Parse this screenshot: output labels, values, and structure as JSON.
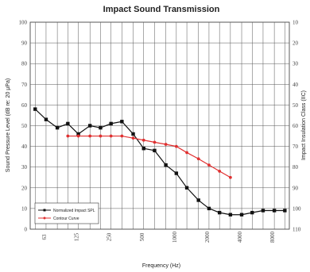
{
  "chart_data": {
    "type": "line",
    "title": "Impact Sound Transmission",
    "xlabel": "Frequency (Hz)",
    "ylabel": "Sound Pressure Level (dB re: 20 µPa)",
    "y2label": "Impact Insulation Class (IIC)",
    "xscale": "log",
    "ylim": [
      0,
      100
    ],
    "yticks": [
      0,
      10,
      20,
      30,
      40,
      50,
      60,
      70,
      80,
      90,
      100
    ],
    "y2ticks": [
      110,
      100,
      90,
      80,
      70,
      60,
      50,
      40,
      30,
      20,
      10
    ],
    "xtick_labels": [
      "63",
      "125",
      "250",
      "500",
      "1000",
      "2000",
      "4000",
      "8000"
    ],
    "xtick_values": [
      63,
      125,
      250,
      500,
      1000,
      2000,
      4000,
      8000
    ],
    "x": [
      50,
      63,
      80,
      100,
      125,
      160,
      200,
      250,
      315,
      400,
      500,
      630,
      800,
      1000,
      1250,
      1600,
      2000,
      2500,
      3150,
      4000,
      5000,
      6300,
      8000,
      10000
    ],
    "grid": true,
    "legend_position": "bottom-left",
    "series": [
      {
        "name": "Normalized Impact SPL",
        "color": "#111111",
        "marker": "square",
        "x": [
          50,
          63,
          80,
          100,
          125,
          160,
          200,
          250,
          315,
          400,
          500,
          630,
          800,
          1000,
          1250,
          1600,
          2000,
          2500,
          3150,
          4000,
          5000,
          6300,
          8000,
          10000
        ],
        "values": [
          58,
          53,
          49,
          51,
          46,
          50,
          49,
          51,
          52,
          46,
          39,
          38,
          31,
          27,
          20,
          14,
          10,
          8,
          7,
          7,
          8,
          9,
          9,
          9
        ]
      },
      {
        "name": "Contour Curve",
        "color": "#e03030",
        "marker": "dot",
        "x": [
          100,
          125,
          160,
          200,
          250,
          315,
          400,
          500,
          630,
          800,
          1000,
          1250,
          1600,
          2000,
          2500,
          3150
        ],
        "values": [
          45,
          45,
          45,
          45,
          45,
          45,
          44,
          43,
          42,
          41,
          40,
          37,
          34,
          31,
          28,
          25
        ]
      }
    ]
  }
}
